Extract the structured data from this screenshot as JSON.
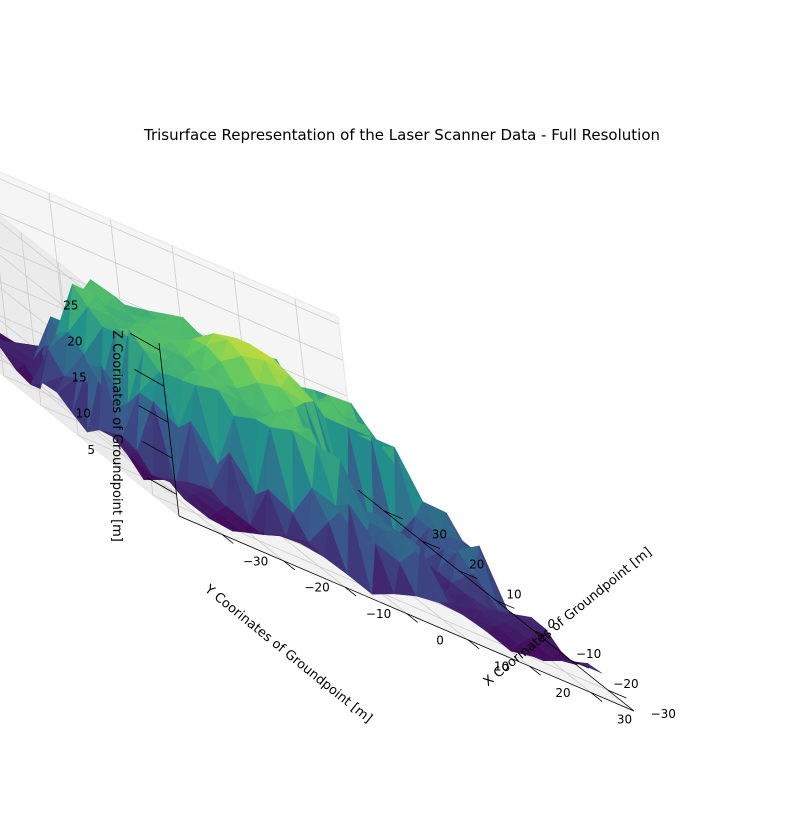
{
  "chart_data": {
    "type": "trisurf3d",
    "title": "Trisurface Representation of the Laser Scanner Data - Full Resolution",
    "xlabel": "X Coorinates of Groundpoint [m]",
    "ylabel": "Y Coorinates of Groundpoint [m]",
    "zlabel": "Z Coorinates of Groundpoint [m]",
    "x_ticks": [
      "−30",
      "−20",
      "−10",
      "0",
      "10",
      "20",
      "30"
    ],
    "y_ticks": [
      "−30",
      "−20",
      "−10",
      "0",
      "10",
      "20",
      "30"
    ],
    "z_ticks": [
      "5",
      "10",
      "15",
      "20",
      "25"
    ],
    "xlim": [
      -37,
      37
    ],
    "ylim": [
      -37,
      37
    ],
    "zlim": [
      2,
      26
    ],
    "colormap": "viridis",
    "grid": true,
    "surface_levels": {
      "ground": 2,
      "lower_walls": 10,
      "ring_top": 18,
      "dome_top": 24
    }
  }
}
